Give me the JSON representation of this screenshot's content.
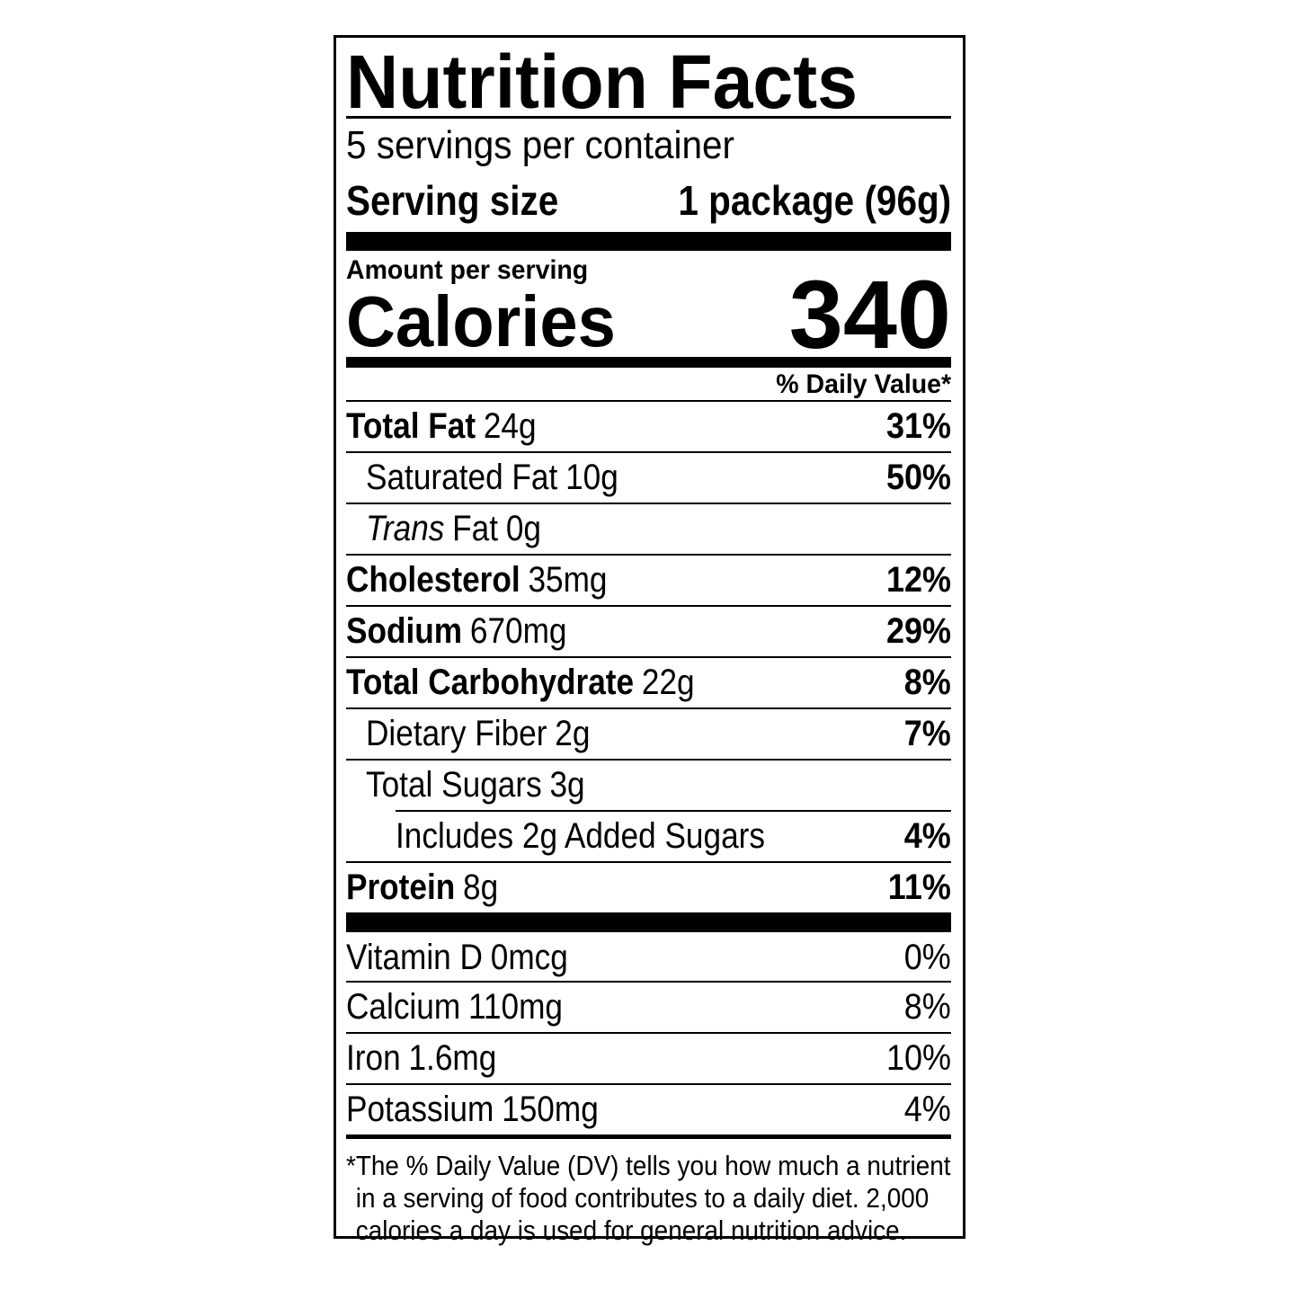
{
  "header": {
    "title": "Nutrition Facts",
    "servings": "5 servings per container",
    "serving_size_label": "Serving size",
    "serving_size_value": "1 package (96g)"
  },
  "calories": {
    "label_small": "Amount per serving",
    "label": "Calories",
    "value": "340"
  },
  "dv_header": "% Daily Value*",
  "nutrients": [
    {
      "name": "Total Fat",
      "amount": "24g",
      "dv": "31%"
    },
    {
      "name": "Saturated Fat",
      "amount": "10g",
      "dv": "50%"
    },
    {
      "name_italic": "Trans",
      "name": "Fat",
      "amount": "0g"
    },
    {
      "name": "Cholesterol",
      "amount": "35mg",
      "dv": "12%"
    },
    {
      "name": "Sodium",
      "amount": "670mg",
      "dv": "29%"
    },
    {
      "name": "Total Carbohydrate",
      "amount": "22g",
      "dv": "8%"
    },
    {
      "name": "Dietary Fiber",
      "amount": "2g",
      "dv": "7%"
    },
    {
      "name": "Total Sugars",
      "amount": "3g"
    },
    {
      "name": "Includes 2g Added Sugars",
      "dv": "4%"
    },
    {
      "name": "Protein",
      "amount": "8g",
      "dv": "11%"
    }
  ],
  "vitamins": [
    {
      "name": "Vitamin D",
      "amount": "0mcg",
      "dv": "0%"
    },
    {
      "name": "Calcium",
      "amount": "110mg",
      "dv": "8%"
    },
    {
      "name": "Iron",
      "amount": "1.6mg",
      "dv": "10%"
    },
    {
      "name": "Potassium",
      "amount": "150mg",
      "dv": "4%"
    }
  ],
  "footnote": [
    "*The % Daily Value (DV) tells you how much a nutrient",
    "in a serving of food contributes to a daily diet. 2,000",
    "calories a day is used for general nutrition advice."
  ]
}
